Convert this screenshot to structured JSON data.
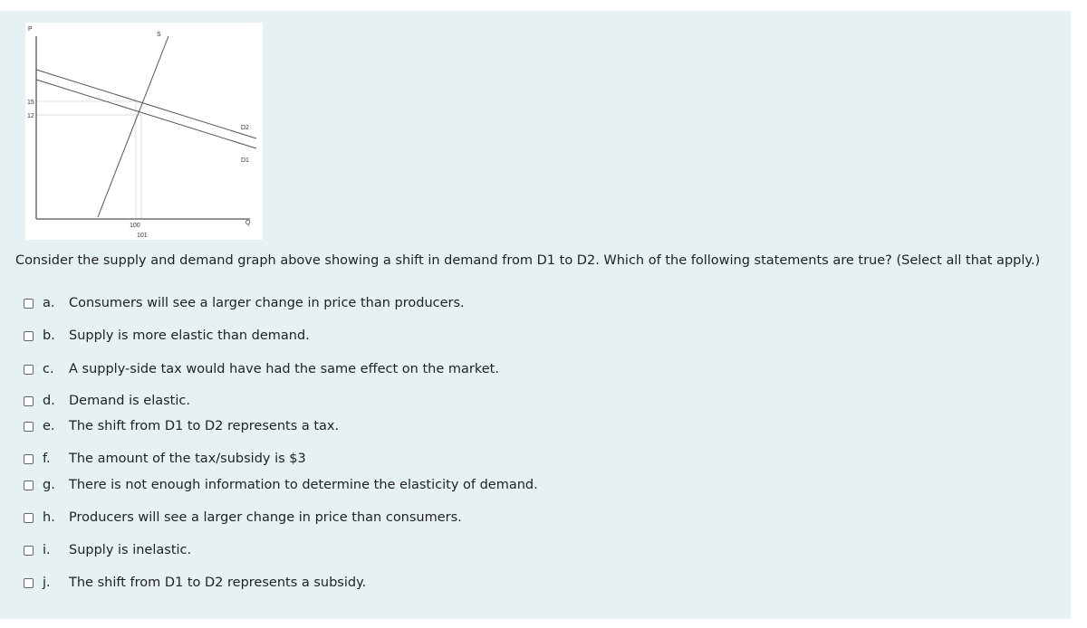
{
  "graph": {
    "labels": {
      "p": "P",
      "s": "S",
      "price_high": "15",
      "price_low": "12",
      "d2": "D2",
      "d1": "D1",
      "qty_low": "100",
      "qty_high": "101",
      "q": "Q"
    }
  },
  "question": "Consider the supply and demand graph above showing a shift in demand from D1 to D2. Which of the following statements are true? (Select all that apply.)",
  "options": [
    {
      "letter": "a.",
      "text": "Consumers will see a larger change in price than producers."
    },
    {
      "letter": "b.",
      "text": "Supply is more elastic than demand."
    },
    {
      "letter": "c.",
      "text": "A supply-side tax would have had the same effect on the market."
    },
    {
      "letter": "d.",
      "text": "Demand is elastic."
    },
    {
      "letter": "e.",
      "text": "The shift from D1 to D2 represents a tax."
    },
    {
      "letter": "f.",
      "text": "The amount of the tax/subsidy is $3"
    },
    {
      "letter": "g.",
      "text": "There is not enough information to determine the elasticity of demand."
    },
    {
      "letter": "h.",
      "text": "Producers will see a larger change in price than consumers."
    },
    {
      "letter": "i.",
      "text": "Supply is inelastic."
    },
    {
      "letter": "j.",
      "text": "The shift from D1 to D2 represents a subsidy."
    }
  ]
}
